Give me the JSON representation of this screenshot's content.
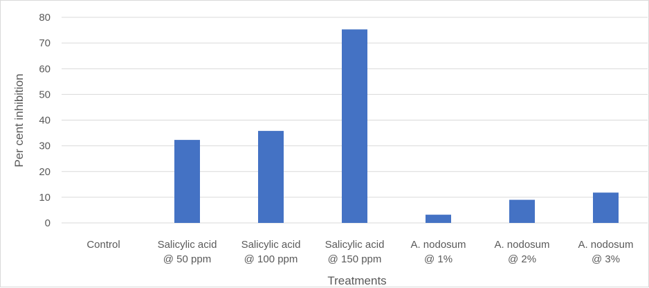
{
  "chart_data": {
    "type": "bar",
    "categories": [
      [
        "Control"
      ],
      [
        "Salicylic acid",
        "@ 50 ppm"
      ],
      [
        "Salicylic acid",
        "@ 100 ppm"
      ],
      [
        "Salicylic acid",
        "@ 150 ppm"
      ],
      [
        "A. nodosum",
        "@ 1%"
      ],
      [
        "A. nodosum",
        "@ 2%"
      ],
      [
        "A. nodosum",
        "@ 3%"
      ]
    ],
    "values": [
      0,
      32.3,
      35.8,
      75.3,
      3.2,
      9.0,
      11.8
    ],
    "xlabel": "Treatments",
    "ylabel": "Per cent inhibition",
    "ylim": [
      0,
      80
    ],
    "yticks": [
      0,
      10,
      20,
      30,
      40,
      50,
      60,
      70,
      80
    ],
    "grid": true,
    "bar_color": "#4472C4",
    "grid_color": "#d9d9d9"
  }
}
